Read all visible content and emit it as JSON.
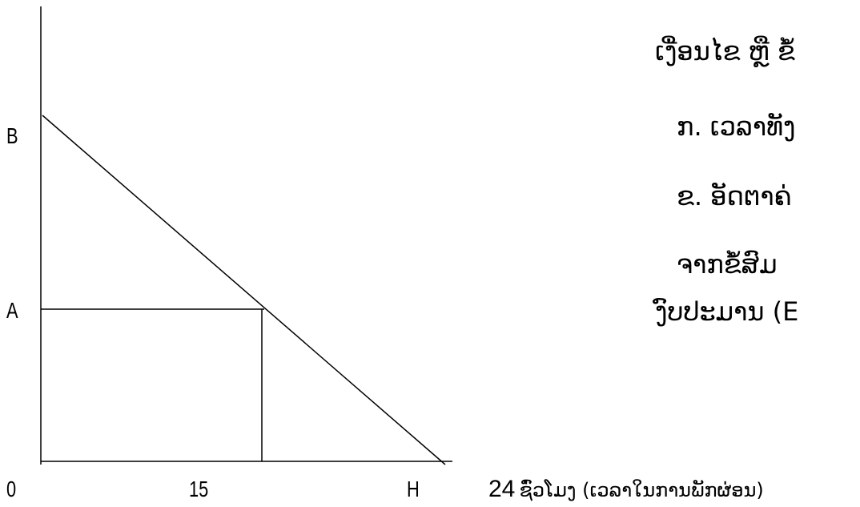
{
  "diagram": {
    "labels": {
      "b": "B",
      "a": "A",
      "origin": "0",
      "fifteen": "15",
      "h": "H",
      "axis_caption_number": "24",
      "axis_caption_text": "ຊົ່ວໂມງ (ເວລາໃນການພັກຜ່ອນ)"
    }
  },
  "text_panel": {
    "line1": "ເງື່ອນໄຂ ຫຼື ຂໍ້",
    "line2": "ກ. ເວລາທັງ",
    "line3": "ຂ. ອັດຕາຄ່",
    "line4": "ຈາກຂໍ້ສົມ",
    "line5": "ງົບປະມານ (E"
  }
}
